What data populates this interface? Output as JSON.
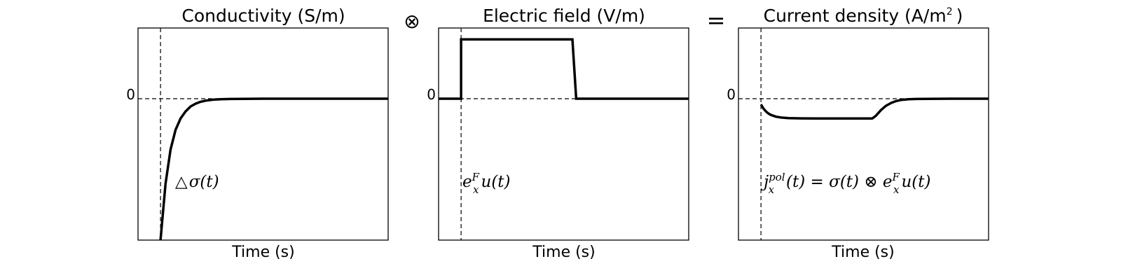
{
  "operators": {
    "convolve": "⊗",
    "equals": "="
  },
  "chart_data": [
    {
      "type": "line",
      "title": "Conductivity (S/m)",
      "xlabel": "Time (s)",
      "ylabel": "",
      "zero_tick": "0",
      "xlim": [
        0,
        1
      ],
      "ylim": [
        -1,
        0.5
      ],
      "grid": false,
      "legend": "none",
      "step_x": 0.09,
      "series": [
        {
          "x": [
            0.09,
            0.11,
            0.13,
            0.15,
            0.17,
            0.19,
            0.21,
            0.23,
            0.25,
            0.27,
            0.3,
            0.33,
            0.37,
            0.42,
            0.5,
            0.65,
            0.85,
            1.0
          ],
          "y": [
            -1.0,
            -0.6,
            -0.36,
            -0.22,
            -0.14,
            -0.09,
            -0.055,
            -0.035,
            -0.022,
            -0.014,
            -0.007,
            -0.004,
            -0.002,
            -0.001,
            0,
            0,
            0,
            0
          ]
        }
      ],
      "annotation": {
        "pre": "△",
        "main": "σ(t)"
      }
    },
    {
      "type": "line",
      "title": "Electric field (V/m)",
      "xlabel": "Time (s)",
      "ylabel": "",
      "zero_tick": "0",
      "xlim": [
        0,
        1
      ],
      "ylim": [
        -1,
        0.5
      ],
      "grid": false,
      "legend": "none",
      "step_x": 0.09,
      "series": [
        {
          "x": [
            0,
            0.09,
            0.09,
            0.535,
            0.55,
            1.0
          ],
          "y": [
            0,
            0,
            0.42,
            0.42,
            0,
            0
          ]
        }
      ],
      "annotation": {
        "e": "e",
        "e_sup": "F",
        "e_sub": "x",
        "tail": "u(t)"
      }
    },
    {
      "type": "line",
      "title": "Current density (A/m",
      "title_sup": "2",
      "title_close": ")",
      "xlabel": "Time (s)",
      "ylabel": "",
      "zero_tick": "0",
      "xlim": [
        0,
        1
      ],
      "ylim": [
        -1,
        0.5
      ],
      "grid": false,
      "legend": "none",
      "step_x": 0.09,
      "series": [
        {
          "x": [
            0.09,
            0.1,
            0.11,
            0.12,
            0.13,
            0.15,
            0.17,
            0.2,
            0.25,
            0.32,
            0.4,
            0.48,
            0.535,
            0.55,
            0.57,
            0.59,
            0.61,
            0.63,
            0.65,
            0.68,
            0.71,
            0.75,
            0.85,
            1.0
          ],
          "y": [
            -0.04,
            -0.07,
            -0.09,
            -0.105,
            -0.115,
            -0.127,
            -0.133,
            -0.137,
            -0.139,
            -0.14,
            -0.14,
            -0.14,
            -0.14,
            -0.12,
            -0.08,
            -0.05,
            -0.03,
            -0.017,
            -0.009,
            -0.004,
            -0.002,
            -0.001,
            0,
            0
          ]
        }
      ],
      "annotation": {
        "j": "j",
        "j_sup": "pol",
        "j_sub": "x",
        "mid": "(t) = σ(t) ⊗ ",
        "e": "e",
        "e_sup": "F",
        "e_sub": "x",
        "tail": "u(t)"
      }
    }
  ]
}
